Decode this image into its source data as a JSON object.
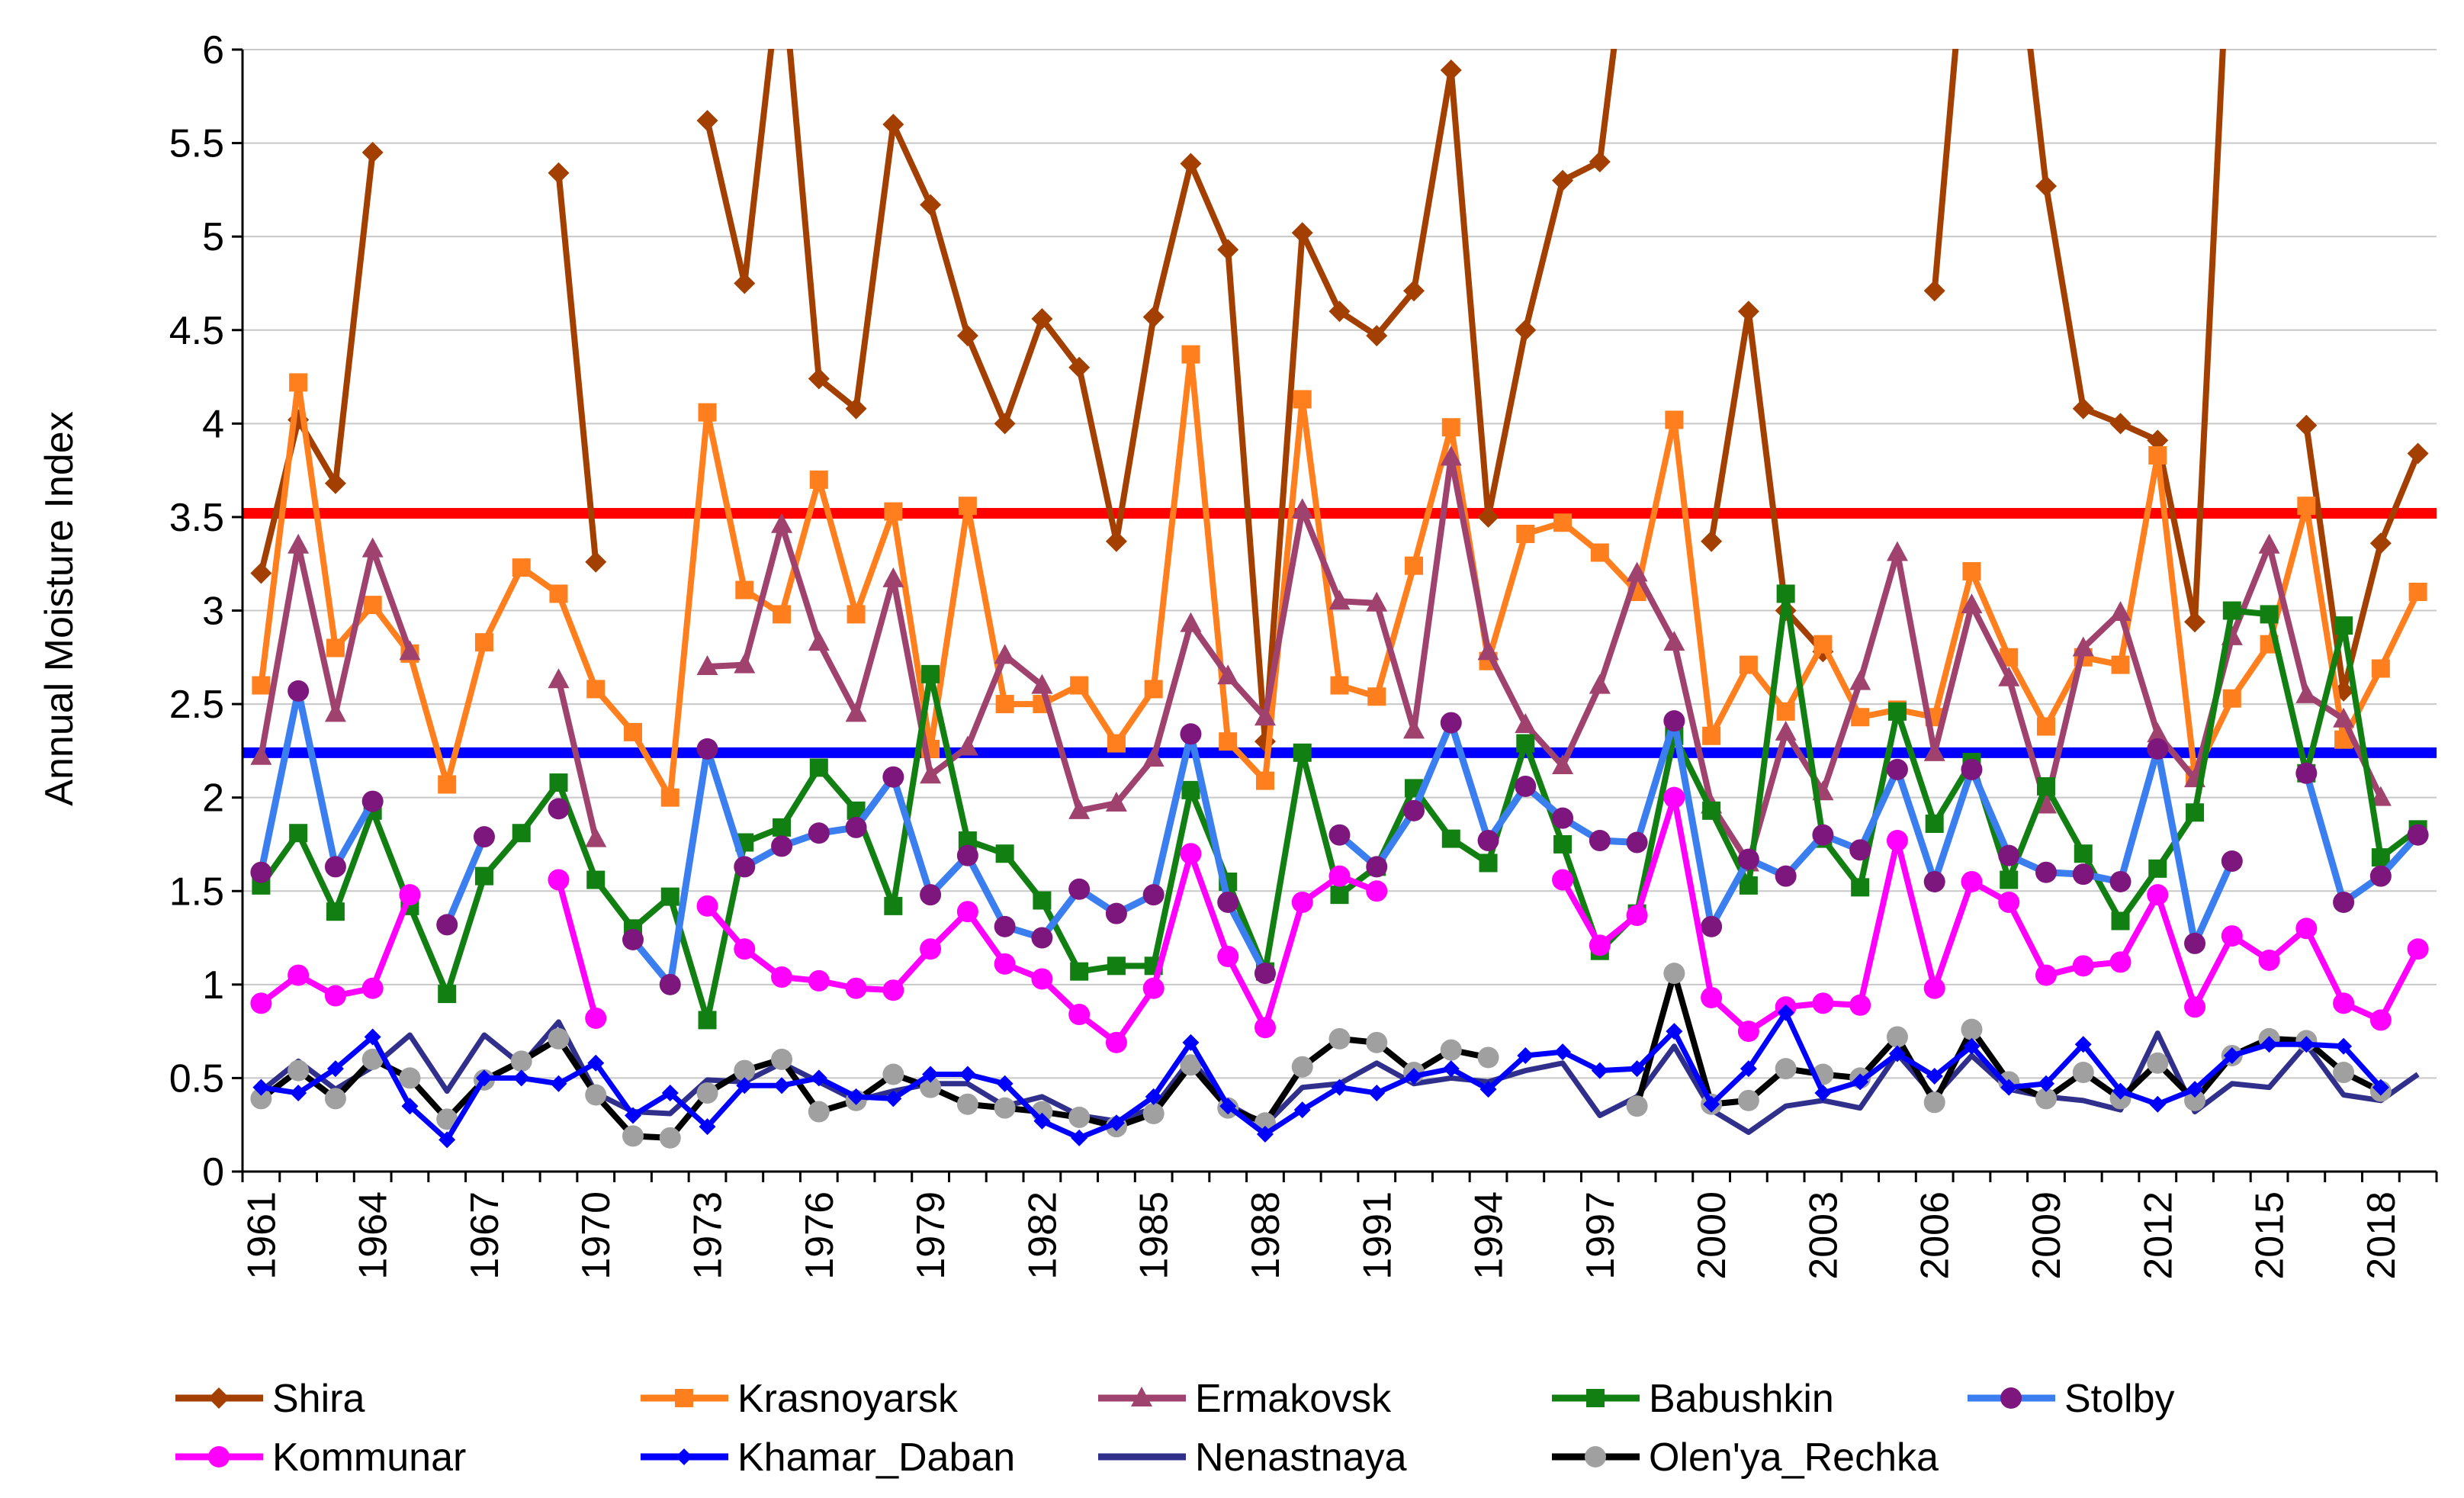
{
  "chart_data": {
    "type": "line",
    "title": "",
    "xlabel": "",
    "ylabel": "Annual Moisture Index",
    "ylim": [
      0,
      6
    ],
    "xlim": [
      1961,
      2019
    ],
    "yticks": [
      "0",
      "0.5",
      "1",
      "1.5",
      "2",
      "2.5",
      "3",
      "3.5",
      "4",
      "4.5",
      "5",
      "5.5",
      "6"
    ],
    "xticks": [
      "1961",
      "1964",
      "1967",
      "1970",
      "1973",
      "1976",
      "1979",
      "1982",
      "1985",
      "1988",
      "1991",
      "1994",
      "1997",
      "2000",
      "2003",
      "2006",
      "2009",
      "2012",
      "2015",
      "2018"
    ],
    "grid": "horizontal",
    "legend_placement": "bottom",
    "reference_lines": [
      {
        "y": 3.52,
        "color": "#ff0000"
      },
      {
        "y": 2.24,
        "color": "#0000ff"
      }
    ],
    "series": [
      {
        "name": "Shira",
        "color": "#a33f00",
        "marker": "diamond",
        "values": [
          3.2,
          4.02,
          3.68,
          5.45,
          null,
          null,
          null,
          null,
          5.34,
          3.26,
          null,
          null,
          5.62,
          4.75,
          6.5,
          4.24,
          4.08,
          5.6,
          5.17,
          4.47,
          4.0,
          4.56,
          4.3,
          3.37,
          4.57,
          5.39,
          4.93,
          2.3,
          5.02,
          4.6,
          4.47,
          4.71,
          5.89,
          3.5,
          4.5,
          5.3,
          5.4,
          7.0,
          null,
          3.37,
          4.6,
          3.0,
          2.78,
          null,
          null,
          4.71,
          7.0,
          7.0,
          5.27,
          4.08,
          4.0,
          3.91,
          2.94,
          7.0,
          null,
          3.99,
          2.57,
          3.36,
          3.84
        ]
      },
      {
        "name": "Krasnoyarsk",
        "color": "#ff7f1e",
        "marker": "square",
        "values": [
          2.6,
          4.22,
          2.8,
          3.03,
          2.77,
          2.07,
          2.83,
          3.23,
          3.09,
          2.58,
          2.35,
          2.0,
          4.06,
          3.11,
          2.98,
          3.7,
          2.98,
          3.53,
          2.26,
          3.56,
          2.5,
          2.5,
          2.6,
          2.29,
          2.58,
          4.37,
          2.3,
          2.09,
          4.13,
          2.6,
          2.54,
          3.24,
          3.98,
          2.73,
          3.41,
          3.47,
          3.31,
          3.1,
          4.02,
          2.33,
          2.71,
          2.46,
          2.82,
          2.43,
          2.47,
          2.43,
          3.21,
          2.75,
          2.38,
          2.75,
          2.71,
          3.83,
          2.12,
          2.53,
          2.82,
          3.56,
          2.31,
          2.69,
          3.1
        ]
      },
      {
        "name": "Ermakovsk",
        "color": "#a0426e",
        "marker": "triangle",
        "values": [
          2.22,
          3.35,
          2.45,
          3.33,
          2.78,
          null,
          null,
          null,
          2.63,
          1.78,
          null,
          null,
          2.7,
          2.71,
          3.46,
          2.83,
          2.45,
          3.17,
          2.12,
          2.27,
          2.76,
          2.6,
          1.93,
          1.97,
          2.21,
          2.93,
          2.65,
          2.43,
          3.54,
          3.05,
          3.04,
          2.36,
          3.82,
          2.78,
          2.39,
          2.17,
          2.6,
          3.2,
          2.83,
          1.96,
          1.65,
          2.35,
          2.03,
          2.62,
          3.31,
          2.24,
          3.03,
          2.64,
          1.96,
          2.8,
          2.99,
          2.34,
          2.1,
          2.86,
          3.35,
          2.55,
          2.42,
          2.0,
          null
        ]
      },
      {
        "name": "Babushkin",
        "color": "#127f12",
        "marker": "square",
        "values": [
          1.53,
          1.81,
          1.39,
          1.93,
          1.42,
          0.95,
          1.58,
          1.81,
          2.08,
          1.56,
          1.3,
          1.47,
          0.81,
          1.76,
          1.84,
          2.16,
          1.93,
          1.42,
          2.66,
          1.77,
          1.7,
          1.45,
          1.07,
          1.1,
          1.1,
          2.04,
          1.55,
          1.07,
          2.24,
          1.48,
          1.63,
          2.05,
          1.78,
          1.65,
          2.29,
          1.75,
          1.18,
          1.38,
          2.33,
          1.93,
          1.53,
          3.09,
          1.78,
          1.52,
          2.46,
          1.86,
          2.19,
          1.56,
          2.06,
          1.7,
          1.34,
          1.62,
          1.92,
          3.0,
          2.98,
          2.13,
          2.92,
          1.68,
          1.83
        ]
      },
      {
        "name": "Stolby",
        "color": "#3a7ef0",
        "marker": "circle",
        "marker_color": "#7d177e",
        "values": [
          1.6,
          2.57,
          1.63,
          1.98,
          null,
          1.32,
          1.79,
          null,
          1.94,
          null,
          1.24,
          1.0,
          2.26,
          1.63,
          1.74,
          1.81,
          1.84,
          2.11,
          1.48,
          1.69,
          1.31,
          1.25,
          1.51,
          1.38,
          1.48,
          2.34,
          1.44,
          1.06,
          null,
          1.8,
          1.63,
          1.93,
          2.4,
          1.77,
          2.06,
          1.89,
          1.77,
          1.76,
          2.41,
          1.31,
          1.67,
          1.58,
          1.8,
          1.72,
          2.15,
          1.55,
          2.15,
          1.69,
          1.6,
          1.59,
          1.55,
          2.26,
          1.22,
          1.66,
          null,
          2.13,
          1.44,
          1.58,
          1.8
        ]
      },
      {
        "name": "Kommunar",
        "color": "#ff00ff",
        "marker": "circle",
        "values": [
          0.9,
          1.05,
          0.94,
          0.98,
          1.48,
          null,
          null,
          null,
          1.56,
          0.82,
          null,
          null,
          1.42,
          1.19,
          1.04,
          1.02,
          0.98,
          0.97,
          1.19,
          1.39,
          1.11,
          1.03,
          0.84,
          0.69,
          0.98,
          1.7,
          1.15,
          0.77,
          1.44,
          1.58,
          1.5,
          null,
          null,
          null,
          null,
          1.56,
          1.21,
          1.37,
          2.0,
          0.93,
          0.75,
          0.88,
          0.9,
          0.89,
          1.77,
          0.98,
          1.55,
          1.44,
          1.05,
          1.1,
          1.12,
          1.48,
          0.88,
          1.26,
          1.13,
          1.3,
          0.9,
          0.81,
          1.19
        ]
      },
      {
        "name": "Khamar_Daban",
        "color": "#0000ff",
        "marker": "small-diamond",
        "values": [
          0.45,
          0.42,
          0.55,
          0.72,
          0.35,
          0.17,
          0.5,
          0.5,
          0.47,
          0.58,
          0.3,
          0.42,
          0.24,
          0.46,
          0.46,
          0.5,
          0.4,
          0.39,
          0.52,
          0.52,
          0.47,
          0.27,
          0.18,
          0.26,
          0.4,
          0.69,
          0.35,
          0.2,
          0.33,
          0.45,
          0.42,
          0.51,
          0.55,
          0.44,
          0.62,
          0.64,
          0.54,
          0.55,
          0.75,
          0.36,
          0.55,
          0.85,
          0.42,
          0.48,
          0.63,
          0.51,
          0.67,
          0.45,
          0.47,
          0.68,
          0.43,
          0.36,
          0.44,
          0.62,
          0.68,
          0.68,
          0.67,
          0.45,
          null
        ]
      },
      {
        "name": "Nenastnaya",
        "color": "#30308c",
        "marker": "none",
        "values": [
          0.43,
          0.59,
          0.44,
          0.56,
          0.73,
          0.43,
          0.73,
          0.57,
          0.8,
          0.42,
          0.32,
          0.31,
          0.49,
          0.48,
          0.58,
          0.48,
          0.38,
          0.43,
          0.47,
          0.47,
          0.35,
          0.4,
          0.3,
          0.27,
          0.34,
          0.6,
          0.36,
          0.25,
          0.45,
          0.47,
          0.58,
          0.47,
          0.5,
          0.48,
          0.54,
          0.58,
          0.3,
          0.4,
          0.67,
          0.33,
          0.21,
          0.35,
          0.38,
          0.34,
          0.63,
          0.4,
          0.62,
          0.44,
          0.4,
          0.38,
          0.33,
          0.74,
          0.32,
          0.47,
          0.45,
          0.68,
          0.41,
          0.38,
          0.52
        ]
      },
      {
        "name": "Olen'ya_Rechka",
        "color": "#000000",
        "marker": "circle",
        "marker_color": "#a0a0a0",
        "values": [
          0.39,
          0.54,
          0.39,
          0.6,
          0.5,
          0.28,
          0.49,
          0.59,
          0.71,
          0.41,
          0.19,
          0.18,
          0.42,
          0.54,
          0.6,
          0.32,
          0.38,
          0.52,
          0.45,
          0.36,
          0.34,
          0.32,
          0.29,
          0.24,
          0.31,
          0.57,
          0.34,
          0.26,
          0.56,
          0.71,
          0.69,
          0.53,
          0.65,
          0.61,
          null,
          null,
          null,
          0.35,
          1.06,
          0.36,
          0.38,
          0.55,
          0.52,
          0.5,
          0.72,
          0.37,
          0.76,
          0.48,
          0.39,
          0.53,
          0.39,
          0.58,
          0.38,
          0.62,
          0.71,
          0.7,
          0.53,
          0.43,
          null
        ]
      }
    ]
  }
}
